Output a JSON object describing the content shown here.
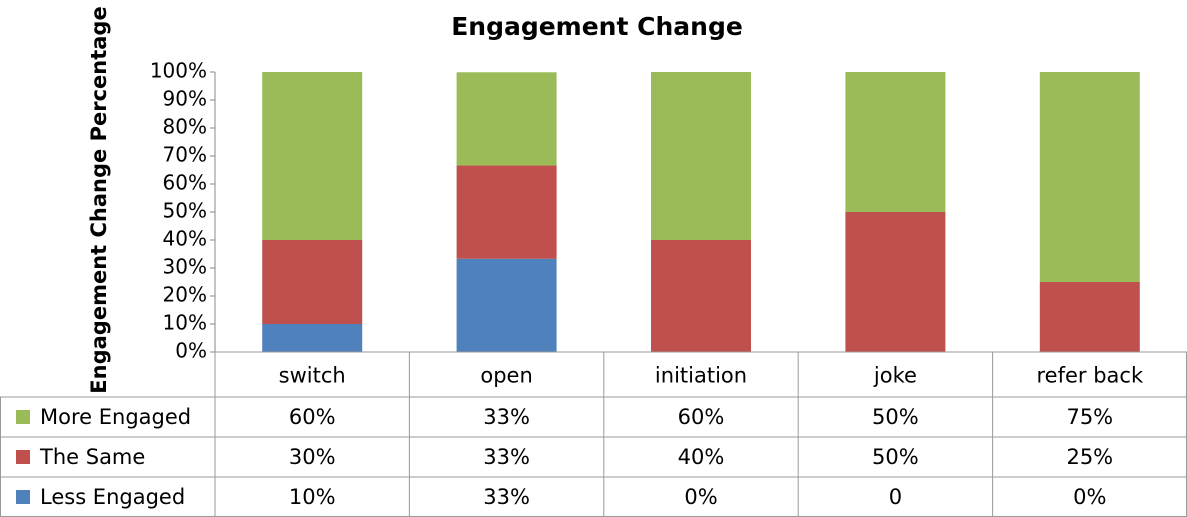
{
  "chart_data": {
    "type": "stacked_bar",
    "title": "Engagement Change",
    "y_label": "Engagement Change Percentage",
    "categories": [
      "switch",
      "open",
      "initiation",
      "joke",
      "refer back"
    ],
    "series": [
      {
        "name": "More Engaged",
        "color": "#9bbb59",
        "values": [
          60,
          33.3,
          60,
          50,
          75
        ],
        "value_labels": [
          "60%",
          "33%",
          "60%",
          "50%",
          "75%"
        ]
      },
      {
        "name": "The Same",
        "color": "#c0504d",
        "values": [
          30,
          33.3,
          40,
          50,
          25
        ],
        "value_labels": [
          "30%",
          "33%",
          "40%",
          "50%",
          "25%"
        ]
      },
      {
        "name": "Less Engaged",
        "color": "#4f81bd",
        "values": [
          10,
          33.3,
          0,
          0,
          0
        ],
        "value_labels": [
          "10%",
          "33%",
          "0%",
          "0",
          "0%"
        ]
      }
    ],
    "ylim": [
      0,
      100
    ],
    "yticks": [
      {
        "value": 0,
        "label": "0%"
      },
      {
        "value": 10,
        "label": "10%"
      },
      {
        "value": 20,
        "label": "20%"
      },
      {
        "value": 30,
        "label": "30%"
      },
      {
        "value": 40,
        "label": "40%"
      },
      {
        "value": 50,
        "label": "50%"
      },
      {
        "value": 60,
        "label": "60%"
      },
      {
        "value": 70,
        "label": "70%"
      },
      {
        "value": 80,
        "label": "80%"
      },
      {
        "value": 90,
        "label": "90%"
      },
      {
        "value": 100,
        "label": "100%"
      }
    ]
  }
}
